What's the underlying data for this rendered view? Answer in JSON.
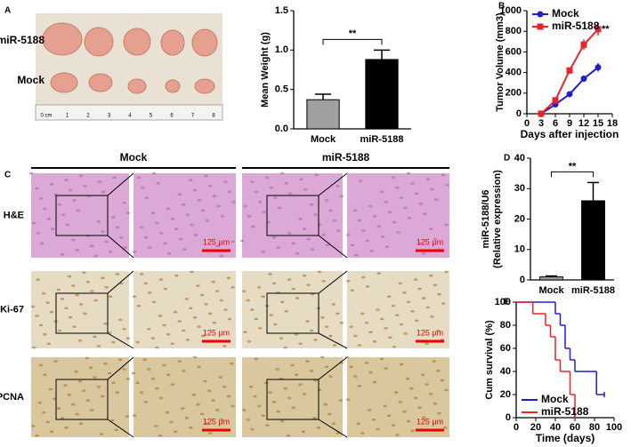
{
  "panels": {
    "letters": [
      "A",
      "B",
      "C",
      "D",
      "E"
    ],
    "photo_rows": [
      "miR-5188",
      "Mock"
    ],
    "ruler": [
      "0 cm",
      "1",
      "2",
      "3",
      "4",
      "5",
      "6",
      "7",
      "8"
    ],
    "histology_columns": [
      "Mock",
      "miR-5188"
    ],
    "histology_rows": [
      "H&E",
      "Ki-67",
      "PCNA"
    ],
    "scale_bar": "125 μm"
  },
  "chart_data": [
    {
      "type": "bar",
      "ylabel": [
        "Mean Weight (g)"
      ],
      "categories": [
        "Mock",
        "miR-5188"
      ],
      "values": [
        0.37,
        0.88
      ],
      "errors": [
        0.07,
        0.12
      ],
      "colors": [
        "#a0a0a0",
        "#000000"
      ],
      "ylim": [
        0,
        1.5
      ],
      "yticks": [
        {
          "value": 0,
          "label": "0.0"
        },
        {
          "value": 0.5,
          "label": "0.5"
        },
        {
          "value": 1,
          "label": "1.0"
        },
        {
          "value": 1.5,
          "label": "1.5"
        }
      ],
      "annotation": "**"
    },
    {
      "type": "line",
      "ylabel": [
        "Tumor Volume (mm3)"
      ],
      "xlabel": "Days after injection",
      "x": [
        3,
        6,
        9,
        12,
        15
      ],
      "series": [
        {
          "name": "Mock",
          "color": "#1f1fd0",
          "marker": "circle",
          "values": [
            0,
            90,
            190,
            340,
            450
          ],
          "errors": [
            5,
            15,
            20,
            30,
            40
          ]
        },
        {
          "name": "miR-5188",
          "color": "#e8232a",
          "marker": "square",
          "values": [
            0,
            130,
            420,
            670,
            820
          ],
          "errors": [
            5,
            20,
            30,
            50,
            60
          ]
        }
      ],
      "xlim": [
        0,
        18
      ],
      "xticks": [
        0,
        3,
        6,
        9,
        12,
        15,
        18
      ],
      "ylim": [
        0,
        1000
      ],
      "yticks": [
        0,
        200,
        400,
        600,
        800,
        1000
      ],
      "legend": "upper left",
      "annotation": "**"
    },
    {
      "type": "bar",
      "ylabel": [
        "miR-5188/U6",
        "(Relative expression)"
      ],
      "categories": [
        "Mock",
        "miR-5188"
      ],
      "values": [
        1,
        26
      ],
      "errors": [
        0.3,
        6
      ],
      "colors": [
        "#a0a0a0",
        "#000000"
      ],
      "ylim": [
        0,
        40
      ],
      "yticks": [
        0,
        10,
        20,
        30,
        40
      ],
      "annotation": "**"
    },
    {
      "type": "step",
      "ylabel": [
        "Cum survival (%)"
      ],
      "xlabel": "Time (days)",
      "series": [
        {
          "name": "Mock",
          "color": "#1f1fd0",
          "x": [
            0,
            40,
            45,
            50,
            55,
            60,
            82,
            90
          ],
          "values": [
            100,
            90,
            80,
            60,
            50,
            40,
            20,
            20
          ]
        },
        {
          "name": "miR-5188",
          "color": "#e8232a",
          "x": [
            0,
            17,
            30,
            35,
            40,
            45,
            55,
            60
          ],
          "values": [
            100,
            90,
            80,
            70,
            50,
            40,
            20,
            0
          ]
        }
      ],
      "xlim": [
        0,
        100
      ],
      "xticks": [
        0,
        20,
        40,
        60,
        80,
        100
      ],
      "ylim": [
        0,
        100
      ],
      "yticks": [
        0,
        20,
        40,
        60,
        80,
        100
      ],
      "legend": "lower left"
    }
  ]
}
